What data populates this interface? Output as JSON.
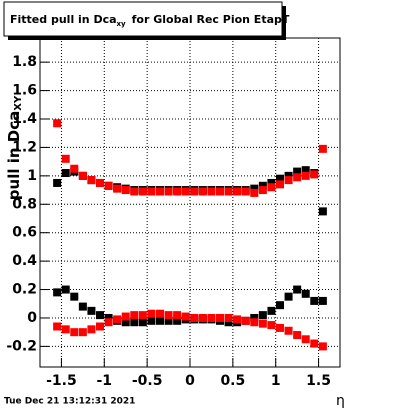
{
  "chart_data": {
    "type": "scatter",
    "title": {
      "main": "Fitted pull in Dca",
      "sub": "xy",
      "rest": "for Global Rec Pion EtapT"
    },
    "ylabel": {
      "main": "pull in Dca",
      "sub": "XY"
    },
    "xlabel": "η",
    "footer": "Tue Dec 21 13:12:31 2021",
    "xlim": [
      -1.75,
      1.75
    ],
    "ylim": [
      -0.345,
      1.97
    ],
    "xticks": [
      -1.5,
      -1,
      -0.5,
      0,
      0.5,
      1,
      1.5
    ],
    "yticks": [
      -0.2,
      0,
      0.2,
      0.4,
      0.6,
      0.8,
      1,
      1.2,
      1.4,
      1.6,
      1.8
    ],
    "grid": true,
    "x": [
      -1.55,
      -1.45,
      -1.35,
      -1.25,
      -1.15,
      -1.05,
      -0.95,
      -0.85,
      -0.75,
      -0.65,
      -0.55,
      -0.45,
      -0.35,
      -0.25,
      -0.15,
      -0.05,
      0.05,
      0.15,
      0.25,
      0.35,
      0.45,
      0.55,
      0.65,
      0.75,
      0.85,
      0.95,
      1.05,
      1.15,
      1.25,
      1.35,
      1.45,
      1.55
    ],
    "series": [
      {
        "color": "#000000",
        "values": [
          0.95,
          1.02,
          1.03,
          1.0,
          0.97,
          0.95,
          0.93,
          0.92,
          0.91,
          0.9,
          0.9,
          0.9,
          0.9,
          0.9,
          0.9,
          0.9,
          0.9,
          0.9,
          0.9,
          0.9,
          0.9,
          0.9,
          0.9,
          0.91,
          0.93,
          0.95,
          0.98,
          1.0,
          1.03,
          1.04,
          1.02,
          0.75
        ]
      },
      {
        "color": "#ff0000",
        "values": [
          1.37,
          1.12,
          1.05,
          1.0,
          0.97,
          0.95,
          0.93,
          0.91,
          0.9,
          0.89,
          0.89,
          0.89,
          0.89,
          0.89,
          0.89,
          0.89,
          0.89,
          0.89,
          0.89,
          0.89,
          0.89,
          0.89,
          0.89,
          0.88,
          0.9,
          0.92,
          0.94,
          0.97,
          0.99,
          1.0,
          1.01,
          1.19
        ]
      },
      {
        "color": "#000000",
        "values": [
          0.18,
          0.2,
          0.15,
          0.08,
          0.05,
          0.02,
          0.0,
          -0.02,
          -0.03,
          -0.03,
          -0.03,
          -0.02,
          -0.02,
          -0.02,
          -0.02,
          -0.01,
          -0.01,
          -0.01,
          -0.01,
          -0.02,
          -0.03,
          -0.03,
          -0.02,
          0.0,
          0.02,
          0.05,
          0.09,
          0.15,
          0.2,
          0.17,
          0.12,
          0.12
        ]
      },
      {
        "color": "#ff0000",
        "values": [
          -0.06,
          -0.08,
          -0.1,
          -0.1,
          -0.08,
          -0.06,
          -0.03,
          -0.01,
          0.01,
          0.02,
          0.02,
          0.03,
          0.03,
          0.02,
          0.02,
          0.01,
          0.0,
          0.0,
          0.0,
          0.0,
          0.0,
          -0.01,
          -0.02,
          -0.03,
          -0.04,
          -0.05,
          -0.07,
          -0.09,
          -0.12,
          -0.15,
          -0.18,
          -0.2
        ]
      }
    ]
  }
}
